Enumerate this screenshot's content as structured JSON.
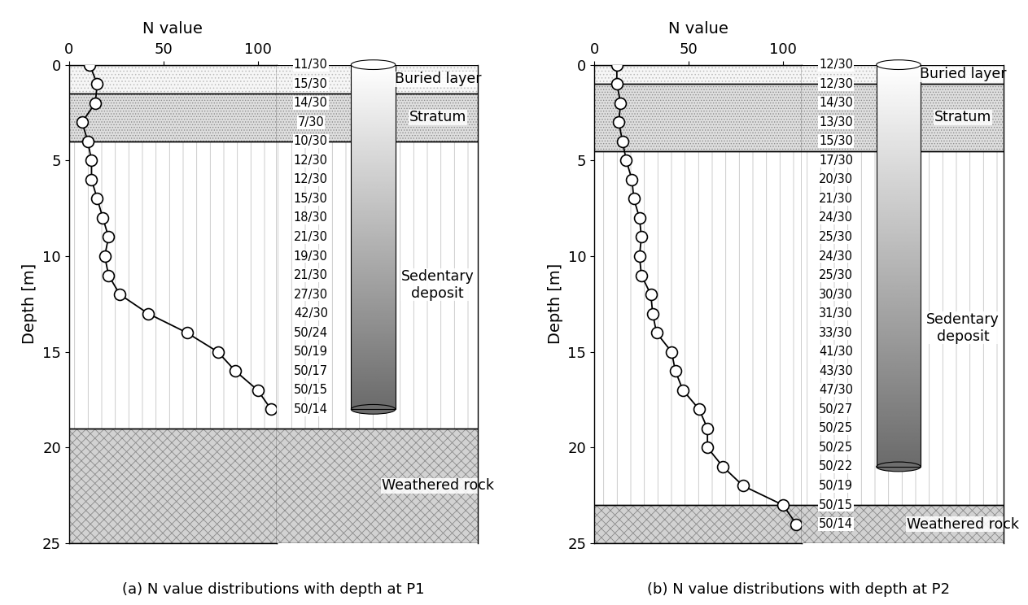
{
  "chart_data": [
    {
      "type": "line",
      "subtitle": "(a) N value distributions with depth at P1",
      "x_label": "N value",
      "y_label": "Depth [m]",
      "x": [
        11,
        15,
        14,
        7,
        10,
        12,
        12,
        15,
        18,
        21,
        19,
        21,
        27,
        42,
        62.5,
        78.9,
        88.2,
        100,
        107.1
      ],
      "y": [
        0,
        1,
        2,
        3,
        4,
        5,
        6,
        7,
        8,
        9,
        10,
        11,
        12,
        13,
        14,
        15,
        16,
        17,
        18
      ],
      "blow_counts": [
        "11/30",
        "15/30",
        "14/30",
        "7/30",
        "10/30",
        "12/30",
        "12/30",
        "15/30",
        "18/30",
        "21/30",
        "19/30",
        "21/30",
        "27/30",
        "42/30",
        "50/24",
        "50/19",
        "50/17",
        "50/15",
        "50/14"
      ],
      "xlim": [
        0,
        110
      ],
      "xticks": [
        0,
        50,
        100
      ],
      "ylim": [
        25,
        0
      ],
      "yticks": [
        0,
        5,
        10,
        15,
        20,
        25
      ],
      "color": "#000000",
      "marker": "o",
      "layers": [
        {
          "name": "Buried layer",
          "top": 0,
          "bottom": 1.5
        },
        {
          "name": "Stratum",
          "top": 1.5,
          "bottom": 4
        },
        {
          "name": "Sedentary\ndeposit",
          "top": 4,
          "bottom": 19
        },
        {
          "name": "Weathered rock",
          "top": 19,
          "bottom": 25
        }
      ],
      "pile_tip_depth": 18
    },
    {
      "type": "line",
      "subtitle": "(b) N value distributions with depth at P2",
      "x_label": "N value",
      "y_label": "Depth [m]",
      "x": [
        12,
        12,
        14,
        13,
        15,
        17,
        20,
        21,
        24,
        25,
        24,
        25,
        30,
        31,
        33,
        41,
        43,
        47,
        55.6,
        60,
        60,
        68.2,
        78.9,
        100,
        107.1
      ],
      "y": [
        0,
        1,
        2,
        3,
        4,
        5,
        6,
        7,
        8,
        9,
        10,
        11,
        12,
        13,
        14,
        15,
        16,
        17,
        18,
        19,
        20,
        21,
        22,
        23,
        24
      ],
      "blow_counts": [
        "12/30",
        "12/30",
        "14/30",
        "13/30",
        "15/30",
        "17/30",
        "20/30",
        "21/30",
        "24/30",
        "25/30",
        "24/30",
        "25/30",
        "30/30",
        "31/30",
        "33/30",
        "41/30",
        "43/30",
        "47/30",
        "50/27",
        "50/25",
        "50/25",
        "50/22",
        "50/19",
        "50/15",
        "50/14"
      ],
      "xlim": [
        0,
        110
      ],
      "xticks": [
        0,
        50,
        100
      ],
      "ylim": [
        25,
        0
      ],
      "yticks": [
        0,
        5,
        10,
        15,
        20,
        25
      ],
      "color": "#000000",
      "marker": "o",
      "layers": [
        {
          "name": "Buried layer",
          "top": 0,
          "bottom": 1
        },
        {
          "name": "Stratum",
          "top": 1,
          "bottom": 4.5
        },
        {
          "name": "Sedentary\ndeposit",
          "top": 4.5,
          "bottom": 23
        },
        {
          "name": "Weathered rock",
          "top": 23,
          "bottom": 25
        }
      ],
      "pile_tip_depth": 21
    }
  ]
}
